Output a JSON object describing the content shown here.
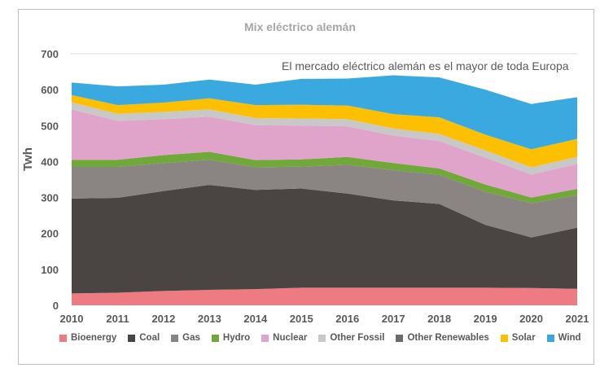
{
  "chart_data": {
    "type": "area",
    "stacked": true,
    "title": "Mix eléctrico alemán",
    "annotation": "El mercado eléctrico alemán es el mayor de toda Europa",
    "xlabel": "",
    "ylabel": "Twh",
    "ylim": [
      0,
      700
    ],
    "yticks": [
      0,
      100,
      200,
      300,
      400,
      500,
      600,
      700
    ],
    "grid": false,
    "legend_position": "bottom",
    "x": [
      "2010",
      "2011",
      "2012",
      "2013",
      "2014",
      "2015",
      "2016",
      "2017",
      "2018",
      "2019",
      "2020",
      "2021"
    ],
    "series": [
      {
        "name": "Bioenergy",
        "color": "#ee7a82",
        "values": [
          33,
          35,
          40,
          43,
          45,
          49,
          49,
          49,
          49,
          49,
          48,
          46
        ]
      },
      {
        "name": "Coal",
        "color": "#4a4542",
        "values": [
          264,
          264,
          278,
          292,
          276,
          276,
          262,
          243,
          233,
          175,
          141,
          170
        ]
      },
      {
        "name": "Gas",
        "color": "#8a8583",
        "values": [
          88,
          86,
          78,
          70,
          63,
          61,
          80,
          84,
          81,
          92,
          95,
          90
        ]
      },
      {
        "name": "Hydro",
        "color": "#70a83a",
        "values": [
          20,
          20,
          22,
          22,
          20,
          20,
          22,
          20,
          18,
          20,
          16,
          18
        ]
      },
      {
        "name": "Nuclear",
        "color": "#e0a3c9",
        "values": [
          140,
          108,
          100,
          98,
          97,
          94,
          85,
          76,
          76,
          75,
          64,
          69
        ]
      },
      {
        "name": "Other Fossil",
        "color": "#c8c8c8",
        "values": [
          20,
          20,
          20,
          20,
          20,
          20,
          20,
          20,
          20,
          20,
          20,
          20
        ]
      },
      {
        "name": "Other Renewables",
        "color": "#6e6a68",
        "values": [
          0,
          0,
          0,
          0,
          0,
          0,
          0,
          0,
          0,
          0,
          0,
          0
        ]
      },
      {
        "name": "Solar",
        "color": "#fdc000",
        "values": [
          20,
          24,
          26,
          31,
          36,
          38,
          38,
          40,
          46,
          44,
          50,
          50
        ]
      },
      {
        "name": "Wind",
        "color": "#3aa9df",
        "values": [
          35,
          52,
          50,
          52,
          57,
          72,
          75,
          108,
          111,
          125,
          126,
          116
        ]
      }
    ]
  }
}
